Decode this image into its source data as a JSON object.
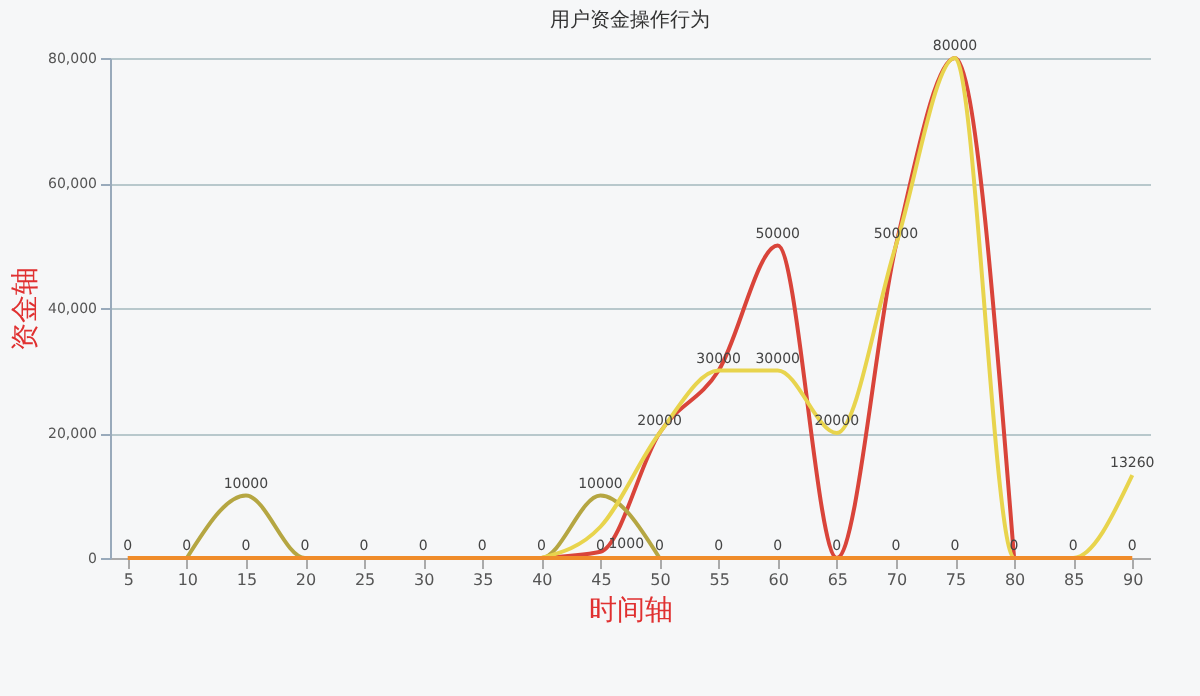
{
  "chart_data": {
    "type": "line",
    "title": "用户资金操作行为",
    "xlabel": "时间轴",
    "ylabel": "资金轴",
    "categories": [
      "5",
      "10",
      "15",
      "20",
      "25",
      "30",
      "35",
      "40",
      "45",
      "50",
      "55",
      "60",
      "65",
      "70",
      "75",
      "80",
      "85",
      "90"
    ],
    "ylim": [
      0,
      80000
    ],
    "yticks": [
      {
        "value": 0,
        "label": "0"
      },
      {
        "value": 20000,
        "label": "20,000"
      },
      {
        "value": 40000,
        "label": "40,000"
      },
      {
        "value": 60000,
        "label": "60,000"
      },
      {
        "value": 80000,
        "label": "80,000"
      }
    ],
    "grid": "y",
    "marker": "none",
    "line_style": "solid",
    "series": [
      {
        "color": "#d9443a",
        "values": [
          null,
          null,
          null,
          null,
          null,
          null,
          null,
          0,
          1000,
          20000,
          30000,
          50000,
          0,
          50000,
          80000,
          0,
          null,
          null
        ],
        "value_labels": [
          null,
          null,
          null,
          null,
          null,
          null,
          null,
          null,
          "1000",
          null,
          null,
          "50000",
          null,
          "50000",
          null,
          null,
          null,
          null
        ]
      },
      {
        "color": "#b5a642",
        "values": [
          null,
          0,
          10000,
          0,
          null,
          null,
          null,
          0,
          10000,
          0,
          null,
          null,
          null,
          null,
          null,
          null,
          null,
          null
        ],
        "value_labels": [
          null,
          null,
          "10000",
          null,
          null,
          null,
          null,
          null,
          "10000",
          null,
          null,
          null,
          null,
          null,
          null,
          null,
          null,
          null
        ]
      },
      {
        "color": "#e8d44d",
        "values": [
          null,
          null,
          null,
          null,
          null,
          null,
          null,
          0,
          5000,
          20000,
          30000,
          30000,
          20000,
          50000,
          80000,
          0,
          0,
          13260
        ],
        "value_labels": [
          null,
          null,
          null,
          null,
          null,
          null,
          null,
          null,
          null,
          "20000",
          "30000",
          "30000",
          "20000",
          null,
          "80000",
          null,
          null,
          "13260"
        ]
      },
      {
        "color": "#f08c2a",
        "values": [
          0,
          0,
          0,
          0,
          0,
          0,
          0,
          0,
          0,
          0,
          0,
          0,
          0,
          0,
          0,
          0,
          0,
          0
        ],
        "value_labels": [
          "0",
          "0",
          "0",
          "0",
          "0",
          "0",
          "0",
          "0",
          "0",
          "0",
          "0",
          "0",
          "0",
          "0",
          "0",
          "0",
          "0",
          "0"
        ]
      }
    ]
  }
}
